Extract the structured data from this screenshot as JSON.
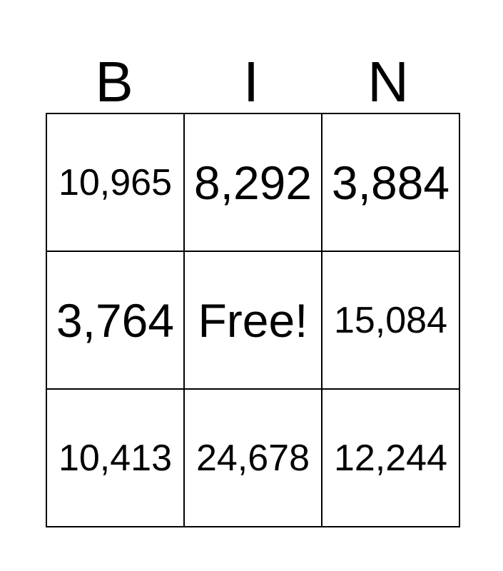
{
  "header": [
    "B",
    "I",
    "N"
  ],
  "rows": [
    [
      "10,965",
      "8,292",
      "3,884"
    ],
    [
      "3,764",
      "Free!",
      "15,084"
    ],
    [
      "10,413",
      "24,678",
      "12,244"
    ]
  ]
}
